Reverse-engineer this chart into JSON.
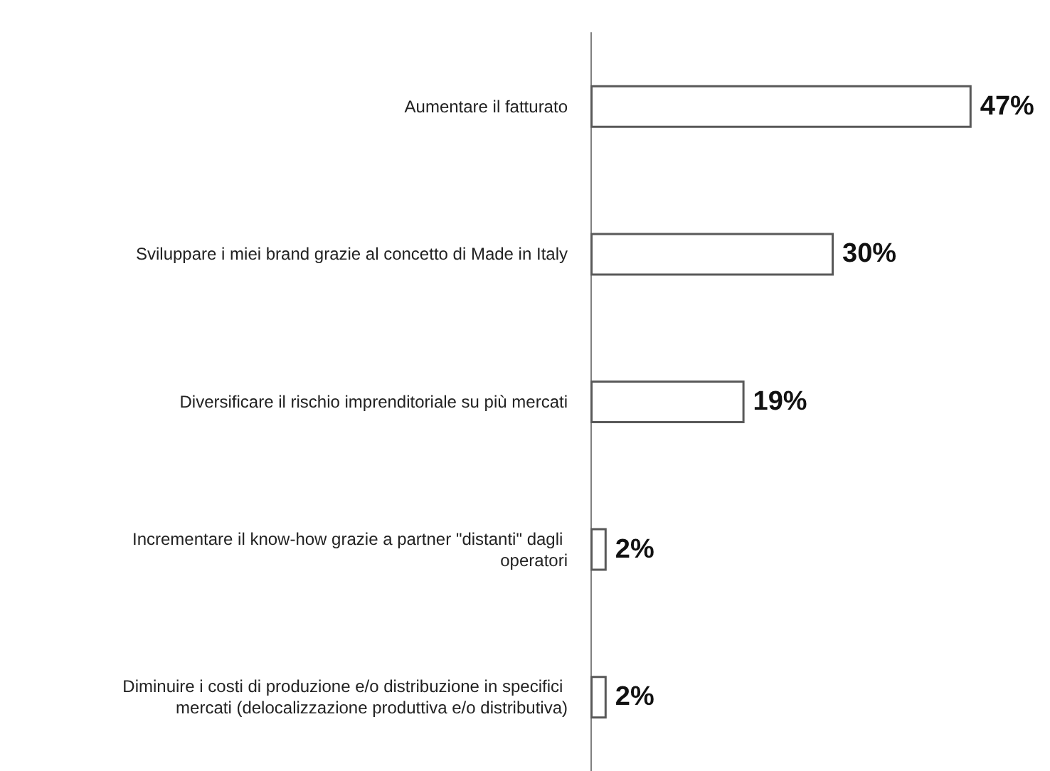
{
  "chart_data": {
    "type": "bar",
    "orientation": "horizontal",
    "categories": [
      "Aumentare il fatturato",
      "Sviluppare i miei brand grazie al concetto di Made in Italy",
      "Diversificare il rischio imprenditoriale su più mercati",
      "Incrementare il know-how grazie a partner \"distanti\" dagli operatori",
      "Diminuire i costi di produzione e/o distribuzione in specifici mercati (delocalizzazione produttiva e/o distributiva)"
    ],
    "values": [
      47,
      30,
      19,
      2,
      2
    ],
    "value_labels": [
      "47%",
      "30%",
      "19%",
      "2%",
      "2%"
    ],
    "color": "#ffffff",
    "grid": false
  }
}
